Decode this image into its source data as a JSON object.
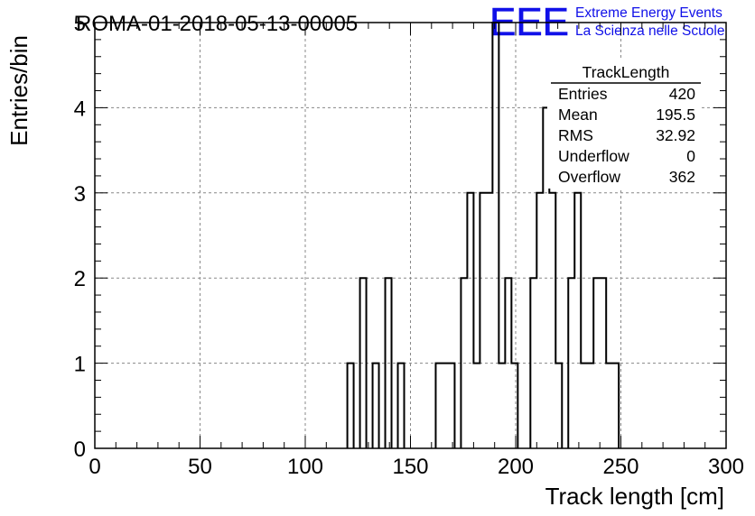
{
  "header": {
    "run_title": "ROMA-01-2018-05-13-00005",
    "logo_text": "EEE",
    "logo_line1": "Extreme Energy Events",
    "logo_line2": "La Scienza nelle Scuole",
    "logo_color": "#1010e8"
  },
  "stats_box": {
    "title": "TrackLength",
    "rows": [
      {
        "label": "Entries",
        "value": "420"
      },
      {
        "label": "Mean",
        "value": "195.5"
      },
      {
        "label": "RMS",
        "value": "32.92"
      },
      {
        "label": "Underflow",
        "value": "0"
      },
      {
        "label": "Overflow",
        "value": "362"
      }
    ]
  },
  "chart_data": {
    "type": "bar",
    "style": "step-histogram",
    "xlabel": "Track length [cm]",
    "ylabel": "Entries/bin",
    "xlim": [
      0,
      300
    ],
    "ylim": [
      0,
      5
    ],
    "x_ticks": [
      0,
      50,
      100,
      150,
      200,
      250,
      300
    ],
    "y_ticks": [
      0,
      1,
      2,
      3,
      4,
      5
    ],
    "grid": true,
    "bin_width": 3,
    "bins": [
      {
        "x0": 120,
        "y": 1
      },
      {
        "x0": 126,
        "y": 2
      },
      {
        "x0": 132,
        "y": 1
      },
      {
        "x0": 138,
        "y": 2
      },
      {
        "x0": 144,
        "y": 1
      },
      {
        "x0": 162,
        "y": 1
      },
      {
        "x0": 165,
        "y": 1
      },
      {
        "x0": 168,
        "y": 1
      },
      {
        "x0": 174,
        "y": 2
      },
      {
        "x0": 177,
        "y": 3
      },
      {
        "x0": 180,
        "y": 1
      },
      {
        "x0": 183,
        "y": 3
      },
      {
        "x0": 186,
        "y": 3
      },
      {
        "x0": 189,
        "y": 5
      },
      {
        "x0": 192,
        "y": 1
      },
      {
        "x0": 195,
        "y": 2
      },
      {
        "x0": 198,
        "y": 1
      },
      {
        "x0": 207,
        "y": 2
      },
      {
        "x0": 210,
        "y": 3
      },
      {
        "x0": 213,
        "y": 4
      },
      {
        "x0": 216,
        "y": 3
      },
      {
        "x0": 219,
        "y": 1
      },
      {
        "x0": 225,
        "y": 2
      },
      {
        "x0": 228,
        "y": 3
      },
      {
        "x0": 231,
        "y": 1
      },
      {
        "x0": 234,
        "y": 1
      },
      {
        "x0": 237,
        "y": 2
      },
      {
        "x0": 240,
        "y": 2
      },
      {
        "x0": 243,
        "y": 1
      },
      {
        "x0": 246,
        "y": 1
      }
    ]
  }
}
